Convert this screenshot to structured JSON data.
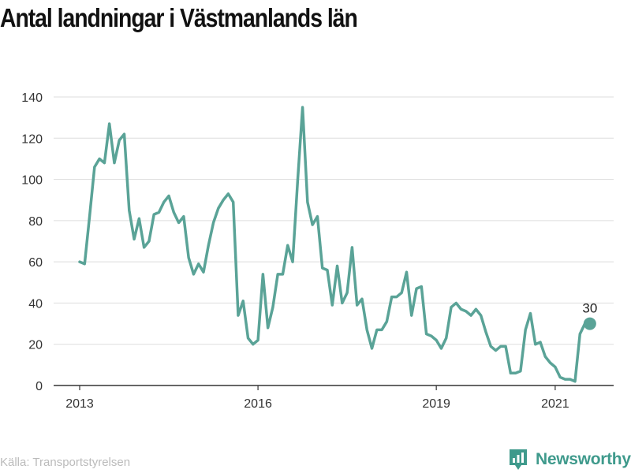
{
  "title": "Antal landningar i Västmanlands län",
  "source": "Källa: Transportstyrelsen",
  "brand": {
    "name": "Newsworthy",
    "icon": "newsworthy-logo-icon",
    "color": "#3f9a8c"
  },
  "chart_data": {
    "type": "line",
    "title": "Antal landningar i Västmanlands län",
    "xlabel": "",
    "ylabel": "",
    "ylim": [
      0,
      140
    ],
    "yticks": [
      "0",
      "20",
      "40",
      "60",
      "80",
      "100",
      "120",
      "140"
    ],
    "xticks": [
      "2013",
      "2016",
      "2019",
      "2021"
    ],
    "grid": true,
    "line_color": "#5aa397",
    "end_label": "30",
    "series": [
      {
        "x": [
          "2013-01",
          "2013-02",
          "2013-03",
          "2013-04",
          "2013-05",
          "2013-06",
          "2013-07",
          "2013-08",
          "2013-09",
          "2013-10",
          "2013-11",
          "2013-12",
          "2014-01",
          "2014-02",
          "2014-03",
          "2014-04",
          "2014-05",
          "2014-06",
          "2014-07",
          "2014-08",
          "2014-09",
          "2014-10",
          "2014-11",
          "2014-12",
          "2015-01",
          "2015-02",
          "2015-03",
          "2015-04",
          "2015-05",
          "2015-06",
          "2015-07",
          "2015-08",
          "2015-09",
          "2015-10",
          "2015-11",
          "2015-12",
          "2016-01",
          "2016-02",
          "2016-03",
          "2016-04",
          "2016-05",
          "2016-06",
          "2016-07",
          "2016-08",
          "2016-09",
          "2016-10",
          "2016-11",
          "2016-12",
          "2017-01",
          "2017-02",
          "2017-03",
          "2017-04",
          "2017-05",
          "2017-06",
          "2017-07",
          "2017-08",
          "2017-09",
          "2017-10",
          "2017-11",
          "2017-12",
          "2018-01",
          "2018-02",
          "2018-03",
          "2018-04",
          "2018-05",
          "2018-06",
          "2018-07",
          "2018-08",
          "2018-09",
          "2018-10",
          "2018-11",
          "2018-12",
          "2019-01",
          "2019-02",
          "2019-03",
          "2019-04",
          "2019-05",
          "2019-06",
          "2019-07",
          "2019-08",
          "2019-09",
          "2019-10",
          "2019-11",
          "2019-12",
          "2020-01",
          "2020-02",
          "2020-03",
          "2020-04",
          "2020-05",
          "2020-06",
          "2020-07",
          "2020-08",
          "2020-09",
          "2020-10",
          "2020-11",
          "2020-12",
          "2021-01",
          "2021-02",
          "2021-03",
          "2021-04",
          "2021-05",
          "2021-06",
          "2021-07",
          "2021-08"
        ],
        "values": [
          60,
          59,
          82,
          106,
          110,
          108,
          127,
          108,
          119,
          122,
          85,
          71,
          81,
          67,
          70,
          83,
          84,
          89,
          92,
          84,
          79,
          82,
          62,
          54,
          59,
          55,
          68,
          79,
          86,
          90,
          93,
          89,
          34,
          41,
          23,
          20,
          22,
          54,
          28,
          38,
          54,
          54,
          68,
          60,
          99,
          135,
          89,
          78,
          82,
          57,
          56,
          39,
          58,
          40,
          45,
          67,
          39,
          42,
          27,
          18,
          27,
          27,
          31,
          43,
          43,
          45,
          55,
          34,
          47,
          48,
          25,
          24,
          22,
          18,
          23,
          38,
          40,
          37,
          36,
          34,
          37,
          34,
          26,
          19,
          17,
          19,
          19,
          6,
          6,
          7,
          27,
          35,
          20,
          21,
          14,
          11,
          9,
          4,
          3,
          3,
          2,
          25,
          30,
          30
        ]
      }
    ]
  }
}
